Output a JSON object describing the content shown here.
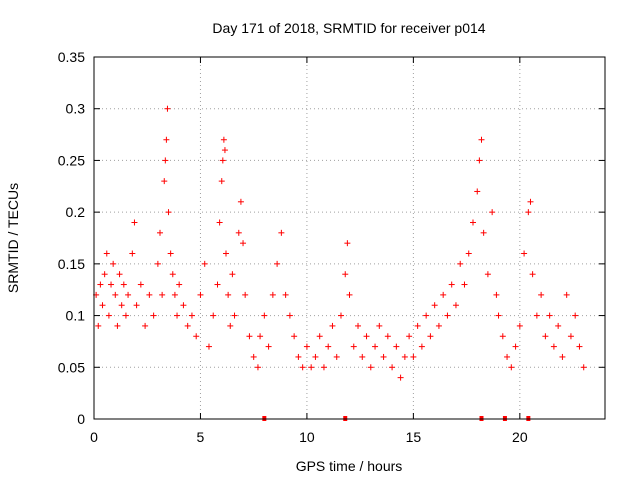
{
  "chart_data": {
    "type": "scatter",
    "title": "Day 171 of 2018, SRMTID for receiver p014",
    "xlabel": "GPS time / hours",
    "ylabel": "SRMTID / TECUs",
    "xlim": [
      0,
      24
    ],
    "ylim": [
      0,
      0.35
    ],
    "x_ticks": [
      0,
      5,
      10,
      15,
      20
    ],
    "x_tick_labels": [
      "0",
      "5",
      "10",
      "15",
      "20"
    ],
    "y_ticks": [
      0,
      0.05,
      0.1,
      0.15,
      0.2,
      0.25,
      0.3,
      0.35
    ],
    "y_tick_labels": [
      "0",
      "0.05",
      "0.1",
      "0.15",
      "0.2",
      "0.25",
      "0.3",
      "0.35"
    ],
    "grid": true,
    "marker": "+",
    "color": "#ff0000",
    "series": [
      {
        "name": "SRMTID",
        "points": [
          [
            0.1,
            0.12
          ],
          [
            0.2,
            0.09
          ],
          [
            0.3,
            0.13
          ],
          [
            0.4,
            0.11
          ],
          [
            0.5,
            0.14
          ],
          [
            0.6,
            0.16
          ],
          [
            0.7,
            0.1
          ],
          [
            0.8,
            0.13
          ],
          [
            0.9,
            0.15
          ],
          [
            1.0,
            0.12
          ],
          [
            1.1,
            0.09
          ],
          [
            1.2,
            0.14
          ],
          [
            1.3,
            0.11
          ],
          [
            1.4,
            0.13
          ],
          [
            1.5,
            0.1
          ],
          [
            1.6,
            0.12
          ],
          [
            1.8,
            0.16
          ],
          [
            1.9,
            0.19
          ],
          [
            2.0,
            0.11
          ],
          [
            2.2,
            0.13
          ],
          [
            2.4,
            0.09
          ],
          [
            2.6,
            0.12
          ],
          [
            2.8,
            0.1
          ],
          [
            3.0,
            0.15
          ],
          [
            3.1,
            0.18
          ],
          [
            3.2,
            0.12
          ],
          [
            3.3,
            0.23
          ],
          [
            3.35,
            0.25
          ],
          [
            3.4,
            0.27
          ],
          [
            3.45,
            0.3
          ],
          [
            3.5,
            0.2
          ],
          [
            3.6,
            0.16
          ],
          [
            3.7,
            0.14
          ],
          [
            3.8,
            0.12
          ],
          [
            3.9,
            0.1
          ],
          [
            4.0,
            0.13
          ],
          [
            4.2,
            0.11
          ],
          [
            4.4,
            0.09
          ],
          [
            4.6,
            0.1
          ],
          [
            4.8,
            0.08
          ],
          [
            5.0,
            0.12
          ],
          [
            5.2,
            0.15
          ],
          [
            5.4,
            0.07
          ],
          [
            5.6,
            0.1
          ],
          [
            5.8,
            0.13
          ],
          [
            5.9,
            0.19
          ],
          [
            6.0,
            0.23
          ],
          [
            6.05,
            0.25
          ],
          [
            6.1,
            0.27
          ],
          [
            6.15,
            0.26
          ],
          [
            6.2,
            0.16
          ],
          [
            6.3,
            0.12
          ],
          [
            6.4,
            0.09
          ],
          [
            6.5,
            0.14
          ],
          [
            6.6,
            0.1
          ],
          [
            6.8,
            0.18
          ],
          [
            6.9,
            0.21
          ],
          [
            7.0,
            0.17
          ],
          [
            7.1,
            0.12
          ],
          [
            7.3,
            0.08
          ],
          [
            7.5,
            0.06
          ],
          [
            7.7,
            0.05
          ],
          [
            7.8,
            0.08
          ],
          [
            8.0,
            0.1
          ],
          [
            8.2,
            0.07
          ],
          [
            8.4,
            0.12
          ],
          [
            8.6,
            0.15
          ],
          [
            8.8,
            0.18
          ],
          [
            9.0,
            0.12
          ],
          [
            9.2,
            0.1
          ],
          [
            9.4,
            0.08
          ],
          [
            9.6,
            0.06
          ],
          [
            9.8,
            0.05
          ],
          [
            10.0,
            0.07
          ],
          [
            10.2,
            0.05
          ],
          [
            10.4,
            0.06
          ],
          [
            10.6,
            0.08
          ],
          [
            10.8,
            0.05
          ],
          [
            11.0,
            0.07
          ],
          [
            11.2,
            0.09
          ],
          [
            11.4,
            0.06
          ],
          [
            11.6,
            0.1
          ],
          [
            11.8,
            0.14
          ],
          [
            11.9,
            0.17
          ],
          [
            12.0,
            0.12
          ],
          [
            12.2,
            0.07
          ],
          [
            12.4,
            0.09
          ],
          [
            12.6,
            0.06
          ],
          [
            12.8,
            0.08
          ],
          [
            13.0,
            0.05
          ],
          [
            13.2,
            0.07
          ],
          [
            13.4,
            0.09
          ],
          [
            13.6,
            0.06
          ],
          [
            13.8,
            0.08
          ],
          [
            14.0,
            0.05
          ],
          [
            14.2,
            0.07
          ],
          [
            14.4,
            0.04
          ],
          [
            14.6,
            0.06
          ],
          [
            14.8,
            0.08
          ],
          [
            15.0,
            0.06
          ],
          [
            15.2,
            0.09
          ],
          [
            15.4,
            0.07
          ],
          [
            15.6,
            0.1
          ],
          [
            15.8,
            0.08
          ],
          [
            16.0,
            0.11
          ],
          [
            16.2,
            0.09
          ],
          [
            16.4,
            0.12
          ],
          [
            16.6,
            0.1
          ],
          [
            16.8,
            0.13
          ],
          [
            17.0,
            0.11
          ],
          [
            17.2,
            0.15
          ],
          [
            17.4,
            0.13
          ],
          [
            17.6,
            0.16
          ],
          [
            17.8,
            0.19
          ],
          [
            18.0,
            0.22
          ],
          [
            18.1,
            0.25
          ],
          [
            18.2,
            0.27
          ],
          [
            18.3,
            0.18
          ],
          [
            18.5,
            0.14
          ],
          [
            18.7,
            0.2
          ],
          [
            18.9,
            0.12
          ],
          [
            19.0,
            0.1
          ],
          [
            19.2,
            0.08
          ],
          [
            19.4,
            0.06
          ],
          [
            19.6,
            0.05
          ],
          [
            19.8,
            0.07
          ],
          [
            20.0,
            0.09
          ],
          [
            20.2,
            0.16
          ],
          [
            20.4,
            0.2
          ],
          [
            20.5,
            0.21
          ],
          [
            20.6,
            0.14
          ],
          [
            20.8,
            0.1
          ],
          [
            21.0,
            0.12
          ],
          [
            21.2,
            0.08
          ],
          [
            21.4,
            0.1
          ],
          [
            21.6,
            0.07
          ],
          [
            21.8,
            0.09
          ],
          [
            22.0,
            0.06
          ],
          [
            22.2,
            0.12
          ],
          [
            22.4,
            0.08
          ],
          [
            22.6,
            0.1
          ],
          [
            22.8,
            0.07
          ],
          [
            23.0,
            0.05
          ]
        ],
        "zero_markers": [
          8.0,
          11.8,
          18.2,
          19.3,
          20.4
        ]
      }
    ]
  }
}
